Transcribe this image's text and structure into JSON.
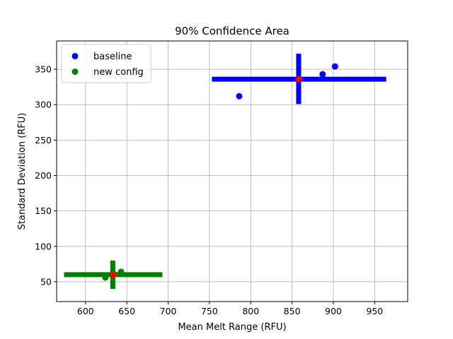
{
  "chart_data": {
    "type": "scatter",
    "title": "90% Confidence Area",
    "xlabel": "Mean Melt Range (RFU)",
    "ylabel": "Standard Deviation (RFU)",
    "xlim": [
      565,
      990
    ],
    "ylim": [
      22,
      390
    ],
    "xticks": [
      600,
      650,
      700,
      750,
      800,
      850,
      900,
      950
    ],
    "yticks": [
      50,
      100,
      150,
      200,
      250,
      300,
      350
    ],
    "grid": true,
    "legend_position": "top-left",
    "series": [
      {
        "name": "baseline",
        "color": "#0000ff",
        "points": [
          {
            "x": 786,
            "y": 312
          },
          {
            "x": 887,
            "y": 343
          },
          {
            "x": 902,
            "y": 354
          }
        ],
        "mean": {
          "x": 858,
          "y": 336
        },
        "x_range": [
          753,
          964
        ],
        "y_range": [
          301,
          372
        ]
      },
      {
        "name": "new config",
        "color": "#008000",
        "points": [
          {
            "x": 624,
            "y": 56
          },
          {
            "x": 634,
            "y": 61
          },
          {
            "x": 643,
            "y": 64
          }
        ],
        "mean": {
          "x": 633,
          "y": 60
        },
        "x_range": [
          574,
          693
        ],
        "y_range": [
          40,
          80
        ]
      }
    ],
    "mean_marker_color": "#ff0000"
  }
}
